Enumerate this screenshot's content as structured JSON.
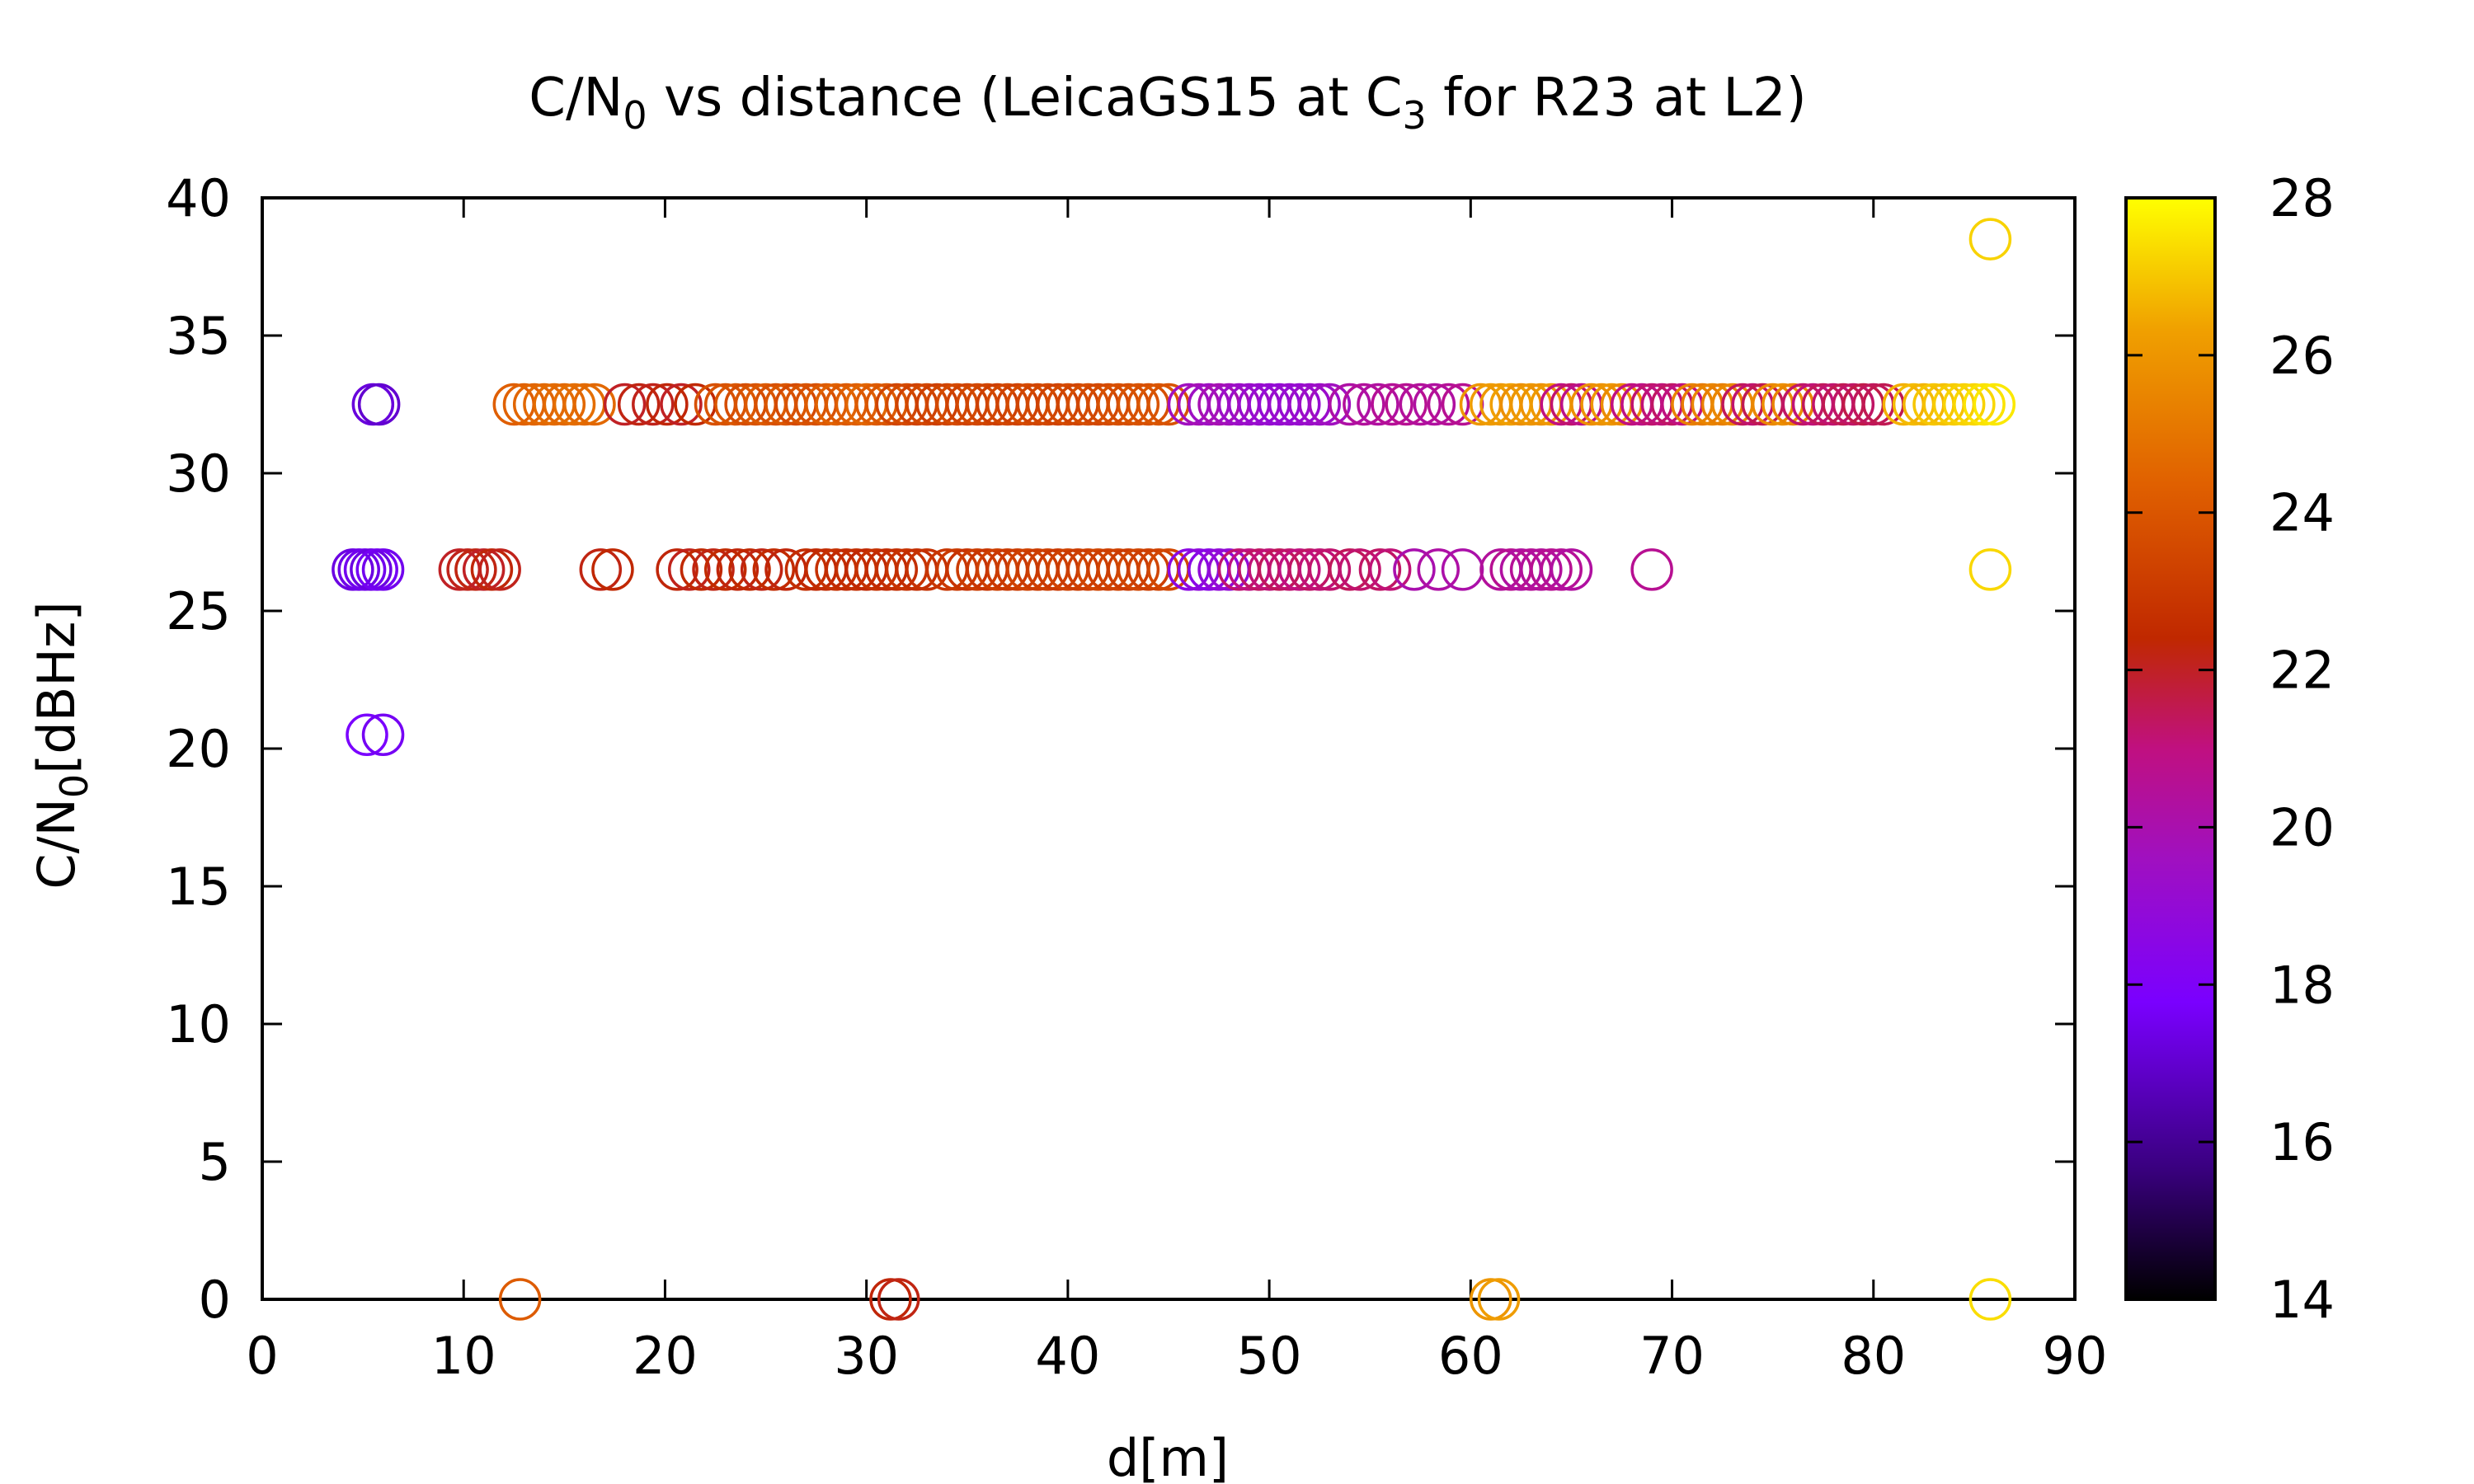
{
  "chart_data": {
    "type": "scatter",
    "title": {
      "main": "C/N",
      "sub": "0",
      "rest1": " vs distance (LeicaGS15 at C",
      "sub2": "3",
      "rest2": " for R23 at L2)"
    },
    "xlabel": "d[m]",
    "ylabel": {
      "main": "C/N",
      "sub": "0",
      "rest": "[dBHz]"
    },
    "xlim": [
      0,
      90
    ],
    "ylim": [
      0,
      40
    ],
    "xticks": [
      0,
      10,
      20,
      30,
      40,
      50,
      60,
      70,
      80,
      90
    ],
    "yticks": [
      0,
      5,
      10,
      15,
      20,
      25,
      30,
      35,
      40
    ],
    "xtick_labels": [
      "0",
      "10",
      "20",
      "30",
      "40",
      "50",
      "60",
      "70",
      "80",
      "90"
    ],
    "ytick_labels": [
      "0",
      "5",
      "10",
      "15",
      "20",
      "25",
      "30",
      "35",
      "40"
    ],
    "colorbar": {
      "range": [
        14,
        28
      ],
      "ticks": [
        14,
        16,
        18,
        20,
        22,
        24,
        26,
        28
      ],
      "tick_labels": [
        "14",
        "16",
        "18",
        "20",
        "22",
        "24",
        "26",
        "28"
      ],
      "palette": [
        "#000000",
        "#3a0080",
        "#7a00ff",
        "#a010c0",
        "#c01080",
        "#c02800",
        "#e06000",
        "#f0a000",
        "#ffff00"
      ]
    },
    "marker": "open-circle",
    "grid": false,
    "points": [
      [
        5.5,
        32.5,
        17.2
      ],
      [
        5.8,
        32.5,
        17.0
      ],
      [
        4.5,
        26.5,
        17.3
      ],
      [
        4.8,
        26.5,
        17.4
      ],
      [
        5.1,
        26.5,
        17.5
      ],
      [
        5.4,
        26.5,
        17.3
      ],
      [
        5.7,
        26.5,
        17.6
      ],
      [
        6.0,
        26.5,
        17.5
      ],
      [
        5.2,
        20.5,
        17.8
      ],
      [
        6.0,
        20.5,
        17.6
      ],
      [
        12.8,
        0,
        24.2
      ],
      [
        31.2,
        0,
        22.3
      ],
      [
        31.6,
        0,
        22.2
      ],
      [
        61.0,
        0,
        26.0
      ],
      [
        61.4,
        0,
        26.2
      ],
      [
        85.8,
        0,
        27.4
      ],
      [
        85.8,
        38.5,
        27.2
      ],
      [
        85.8,
        26.5,
        27.3
      ],
      [
        12.5,
        32.5,
        24.3
      ],
      [
        13.0,
        32.5,
        24.4
      ],
      [
        13.5,
        32.5,
        24.5
      ],
      [
        14.0,
        32.5,
        24.6
      ],
      [
        14.5,
        32.5,
        24.7
      ],
      [
        15.0,
        32.5,
        24.6
      ],
      [
        15.5,
        32.5,
        24.8
      ],
      [
        16.0,
        32.5,
        24.7
      ],
      [
        16.5,
        32.5,
        24.6
      ],
      [
        18.0,
        32.5,
        22.0
      ],
      [
        18.7,
        32.5,
        22.2
      ],
      [
        19.4,
        32.5,
        22.1
      ],
      [
        20.1,
        32.5,
        22.3
      ],
      [
        20.8,
        32.5,
        22.0
      ],
      [
        21.5,
        32.5,
        22.4
      ],
      [
        22.5,
        32.5,
        23.8
      ],
      [
        23.0,
        32.5,
        23.9
      ],
      [
        23.5,
        32.5,
        24.0
      ],
      [
        24.0,
        32.5,
        23.7
      ],
      [
        24.5,
        32.5,
        23.9
      ],
      [
        25.0,
        32.5,
        24.1
      ],
      [
        25.5,
        32.5,
        23.8
      ],
      [
        26.0,
        32.5,
        24.0
      ],
      [
        26.5,
        32.5,
        23.6
      ],
      [
        27.0,
        32.5,
        23.9
      ],
      [
        27.5,
        32.5,
        23.8
      ],
      [
        28.0,
        32.5,
        24.2
      ],
      [
        28.5,
        32.5,
        24.4
      ],
      [
        29.0,
        32.5,
        24.1
      ],
      [
        29.5,
        32.5,
        24.3
      ],
      [
        30.0,
        32.5,
        24.5
      ],
      [
        30.5,
        32.5,
        24.2
      ],
      [
        31.0,
        32.5,
        24.0
      ],
      [
        31.5,
        32.5,
        23.4
      ],
      [
        32.0,
        32.5,
        23.6
      ],
      [
        32.5,
        32.5,
        23.3
      ],
      [
        33.0,
        32.5,
        23.5
      ],
      [
        33.5,
        32.5,
        23.2
      ],
      [
        34.0,
        32.5,
        23.4
      ],
      [
        34.5,
        32.5,
        23.6
      ],
      [
        35.0,
        32.5,
        23.3
      ],
      [
        35.5,
        32.5,
        23.5
      ],
      [
        36.0,
        32.5,
        23.4
      ],
      [
        36.5,
        32.5,
        23.2
      ],
      [
        37.0,
        32.5,
        23.5
      ],
      [
        37.5,
        32.5,
        23.3
      ],
      [
        38.0,
        32.5,
        23.6
      ],
      [
        38.5,
        32.5,
        23.4
      ],
      [
        39.0,
        32.5,
        23.5
      ],
      [
        39.5,
        32.5,
        23.3
      ],
      [
        40.0,
        32.5,
        23.6
      ],
      [
        40.5,
        32.5,
        23.4
      ],
      [
        41.0,
        32.5,
        23.7
      ],
      [
        41.5,
        32.5,
        23.5
      ],
      [
        42.0,
        32.5,
        23.6
      ],
      [
        42.5,
        32.5,
        23.8
      ],
      [
        43.0,
        32.5,
        23.7
      ],
      [
        43.5,
        32.5,
        23.9
      ],
      [
        44.0,
        32.5,
        23.8
      ],
      [
        44.5,
        32.5,
        24.0
      ],
      [
        45.0,
        32.5,
        23.9
      ],
      [
        46.0,
        32.5,
        19.6
      ],
      [
        46.5,
        32.5,
        19.8
      ],
      [
        47.0,
        32.5,
        19.5
      ],
      [
        47.5,
        32.5,
        19.9
      ],
      [
        48.0,
        32.5,
        19.7
      ],
      [
        48.5,
        32.5,
        19.4
      ],
      [
        49.0,
        32.5,
        19.3
      ],
      [
        49.5,
        32.5,
        19.2
      ],
      [
        50.0,
        32.5,
        19.1
      ],
      [
        50.5,
        32.5,
        19.0
      ],
      [
        51.0,
        32.5,
        19.2
      ],
      [
        51.5,
        32.5,
        19.1
      ],
      [
        52.0,
        32.5,
        19.3
      ],
      [
        52.5,
        32.5,
        19.4
      ],
      [
        53.0,
        32.5,
        19.6
      ],
      [
        54.0,
        32.5,
        20.2
      ],
      [
        54.7,
        32.5,
        20.4
      ],
      [
        55.4,
        32.5,
        20.3
      ],
      [
        56.1,
        32.5,
        20.5
      ],
      [
        56.8,
        32.5,
        20.6
      ],
      [
        57.5,
        32.5,
        20.4
      ],
      [
        58.2,
        32.5,
        20.3
      ],
      [
        58.9,
        32.5,
        20.5
      ],
      [
        59.6,
        32.5,
        20.6
      ],
      [
        60.5,
        32.5,
        26.0
      ],
      [
        61.0,
        32.5,
        26.2
      ],
      [
        61.5,
        32.5,
        26.1
      ],
      [
        62.0,
        32.5,
        26.3
      ],
      [
        62.5,
        32.5,
        25.8
      ],
      [
        63.0,
        32.5,
        26.0
      ],
      [
        63.5,
        32.5,
        25.9
      ],
      [
        64.0,
        32.5,
        26.1
      ],
      [
        64.5,
        32.5,
        21.0
      ],
      [
        65.0,
        32.5,
        21.2
      ],
      [
        65.5,
        32.5,
        20.8
      ],
      [
        66.0,
        32.5,
        25.8
      ],
      [
        66.5,
        32.5,
        25.9
      ],
      [
        67.0,
        32.5,
        26.0
      ],
      [
        67.5,
        32.5,
        25.7
      ],
      [
        68.0,
        32.5,
        21.0
      ],
      [
        68.5,
        32.5,
        20.9
      ],
      [
        69.0,
        32.5,
        21.2
      ],
      [
        69.5,
        32.5,
        21.1
      ],
      [
        70.0,
        32.5,
        21.3
      ],
      [
        70.5,
        32.5,
        21.0
      ],
      [
        71.0,
        32.5,
        25.4
      ],
      [
        71.5,
        32.5,
        25.2
      ],
      [
        72.0,
        32.5,
        25.5
      ],
      [
        72.5,
        32.5,
        25.3
      ],
      [
        73.0,
        32.5,
        25.6
      ],
      [
        73.5,
        32.5,
        21.4
      ],
      [
        74.0,
        32.5,
        21.2
      ],
      [
        74.5,
        32.5,
        21.5
      ],
      [
        75.0,
        32.5,
        25.6
      ],
      [
        75.5,
        32.5,
        25.8
      ],
      [
        76.0,
        32.5,
        25.5
      ],
      [
        76.5,
        32.5,
        21.3
      ],
      [
        77.0,
        32.5,
        21.1
      ],
      [
        77.5,
        32.5,
        21.4
      ],
      [
        78.0,
        32.5,
        21.2
      ],
      [
        78.5,
        32.5,
        21.5
      ],
      [
        79.0,
        32.5,
        21.3
      ],
      [
        79.5,
        32.5,
        21.6
      ],
      [
        80.0,
        32.5,
        21.4
      ],
      [
        80.5,
        32.5,
        21.5
      ],
      [
        81.5,
        32.5,
        26.6
      ],
      [
        82.0,
        32.5,
        26.8
      ],
      [
        82.5,
        32.5,
        26.7
      ],
      [
        83.0,
        32.5,
        27.0
      ],
      [
        83.5,
        32.5,
        26.9
      ],
      [
        84.0,
        32.5,
        27.1
      ],
      [
        84.5,
        32.5,
        27.2
      ],
      [
        85.0,
        32.5,
        27.3
      ],
      [
        85.5,
        32.5,
        27.5
      ],
      [
        86.0,
        32.5,
        27.6
      ],
      [
        9.8,
        26.5,
        22.0
      ],
      [
        10.2,
        26.5,
        22.1
      ],
      [
        10.6,
        26.5,
        22.2
      ],
      [
        11.0,
        26.5,
        22.0
      ],
      [
        11.4,
        26.5,
        22.3
      ],
      [
        11.8,
        26.5,
        22.1
      ],
      [
        16.8,
        26.5,
        22.2
      ],
      [
        17.4,
        26.5,
        22.4
      ],
      [
        20.6,
        26.5,
        22.3
      ],
      [
        21.2,
        26.5,
        22.1
      ],
      [
        21.8,
        26.5,
        22.4
      ],
      [
        22.4,
        26.5,
        22.2
      ],
      [
        23.0,
        26.5,
        22.5
      ],
      [
        23.6,
        26.5,
        22.3
      ],
      [
        24.2,
        26.5,
        22.4
      ],
      [
        24.8,
        26.5,
        22.2
      ],
      [
        25.4,
        26.5,
        22.5
      ],
      [
        26.0,
        26.5,
        22.3
      ],
      [
        27.0,
        26.5,
        22.6
      ],
      [
        27.5,
        26.5,
        22.4
      ],
      [
        28.0,
        26.5,
        22.5
      ],
      [
        28.5,
        26.5,
        22.7
      ],
      [
        29.0,
        26.5,
        22.5
      ],
      [
        29.5,
        26.5,
        22.6
      ],
      [
        30.0,
        26.5,
        22.4
      ],
      [
        30.5,
        26.5,
        22.7
      ],
      [
        31.0,
        26.5,
        22.5
      ],
      [
        31.5,
        26.5,
        22.6
      ],
      [
        32.0,
        26.5,
        22.8
      ],
      [
        32.5,
        26.5,
        22.6
      ],
      [
        33.0,
        26.5,
        22.7
      ],
      [
        34.0,
        26.5,
        22.9
      ],
      [
        34.5,
        26.5,
        23.0
      ],
      [
        35.0,
        26.5,
        22.8
      ],
      [
        35.5,
        26.5,
        23.1
      ],
      [
        36.0,
        26.5,
        22.9
      ],
      [
        36.5,
        26.5,
        23.2
      ],
      [
        37.0,
        26.5,
        23.0
      ],
      [
        37.5,
        26.5,
        23.1
      ],
      [
        38.0,
        26.5,
        23.3
      ],
      [
        38.5,
        26.5,
        23.1
      ],
      [
        39.0,
        26.5,
        23.2
      ],
      [
        39.5,
        26.5,
        23.0
      ],
      [
        40.0,
        26.5,
        23.3
      ],
      [
        40.5,
        26.5,
        23.1
      ],
      [
        41.0,
        26.5,
        23.2
      ],
      [
        41.5,
        26.5,
        23.4
      ],
      [
        42.0,
        26.5,
        23.2
      ],
      [
        42.5,
        26.5,
        23.3
      ],
      [
        43.0,
        26.5,
        23.1
      ],
      [
        43.5,
        26.5,
        23.4
      ],
      [
        44.0,
        26.5,
        23.2
      ],
      [
        44.5,
        26.5,
        23.3
      ],
      [
        45.0,
        26.5,
        23.5
      ],
      [
        46.0,
        26.5,
        18.6
      ],
      [
        46.5,
        26.5,
        18.8
      ],
      [
        47.0,
        26.5,
        18.5
      ],
      [
        47.5,
        26.5,
        18.9
      ],
      [
        48.0,
        26.5,
        19.0
      ],
      [
        48.5,
        26.5,
        21.2
      ],
      [
        49.0,
        26.5,
        21.0
      ],
      [
        49.5,
        26.5,
        21.3
      ],
      [
        50.0,
        26.5,
        21.1
      ],
      [
        50.5,
        26.5,
        21.4
      ],
      [
        51.0,
        26.5,
        21.2
      ],
      [
        51.5,
        26.5,
        21.0
      ],
      [
        52.0,
        26.5,
        21.3
      ],
      [
        52.5,
        26.5,
        21.1
      ],
      [
        53.0,
        26.5,
        21.2
      ],
      [
        54.0,
        26.5,
        21.4
      ],
      [
        54.5,
        26.5,
        21.2
      ],
      [
        55.5,
        26.5,
        21.3
      ],
      [
        56.0,
        26.5,
        21.1
      ],
      [
        57.2,
        26.5,
        20.0
      ],
      [
        58.4,
        26.5,
        20.2
      ],
      [
        59.6,
        26.5,
        20.1
      ],
      [
        61.5,
        26.5,
        20.4
      ],
      [
        62.0,
        26.5,
        20.6
      ],
      [
        62.5,
        26.5,
        20.3
      ],
      [
        63.0,
        26.5,
        20.5
      ],
      [
        63.5,
        26.5,
        20.4
      ],
      [
        64.0,
        26.5,
        20.6
      ],
      [
        64.5,
        26.5,
        20.5
      ],
      [
        65.0,
        26.5,
        20.3
      ],
      [
        69.0,
        26.5,
        20.6
      ]
    ]
  }
}
